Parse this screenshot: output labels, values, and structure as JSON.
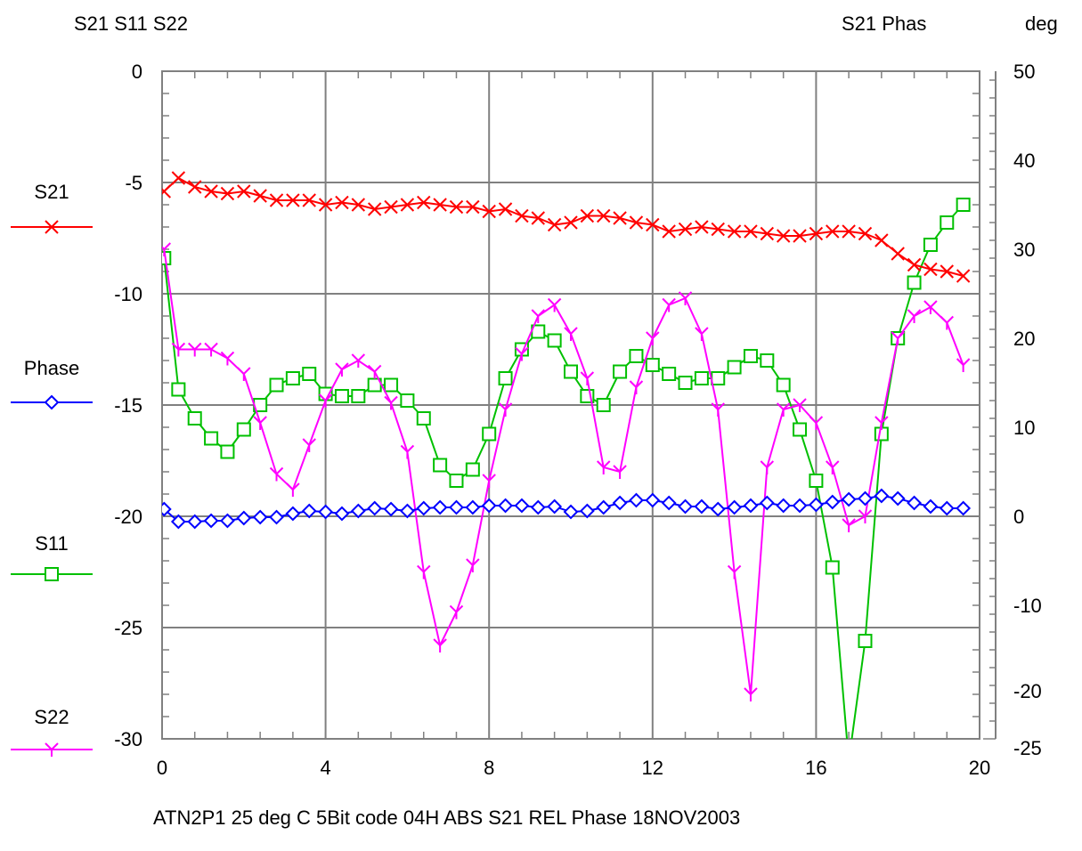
{
  "header": {
    "left_axis_title": "S21 S11 S22",
    "right_axis_title": "S21 Phas",
    "right_axis_unit": "deg"
  },
  "footer": {
    "caption": "ATN2P1 25 deg C  5Bit  code 04H  ABS S21  REL Phase  18NOV2003"
  },
  "chart_data": {
    "type": "line",
    "xlim": [
      0,
      20
    ],
    "x_ticks": [
      0,
      4,
      8,
      12,
      16,
      20
    ],
    "x_tick_labels": [
      "0",
      "4",
      "8",
      "12",
      "16",
      "20"
    ],
    "y_left_lim": [
      -30,
      0
    ],
    "y_left_ticks": [
      0,
      -5,
      -10,
      -15,
      -20,
      -25,
      -30
    ],
    "y_left_tick_labels": [
      "0",
      "-5",
      "-10",
      "-15",
      "-20",
      "-25",
      "-30"
    ],
    "y_right_lim": [
      -25,
      50
    ],
    "y_right_ticks": [
      50,
      40,
      30,
      20,
      10,
      0,
      -10,
      -20,
      -25
    ],
    "y_right_tick_labels": [
      "50",
      "40",
      "30",
      "20",
      "10",
      "0",
      "-10",
      "-20",
      "-25"
    ],
    "grid": true,
    "legend_position": "left",
    "series": [
      {
        "name": "S21",
        "axis": "left",
        "color": "#ff0000",
        "marker": "x",
        "x": [
          0.05,
          0.4,
          0.8,
          1.2,
          1.6,
          2.0,
          2.4,
          2.8,
          3.2,
          3.6,
          4.0,
          4.4,
          4.8,
          5.2,
          5.6,
          6.0,
          6.4,
          6.8,
          7.2,
          7.6,
          8.0,
          8.4,
          8.8,
          9.2,
          9.6,
          10.0,
          10.4,
          10.8,
          11.2,
          11.6,
          12.0,
          12.4,
          12.8,
          13.2,
          13.6,
          14.0,
          14.4,
          14.8,
          15.2,
          15.6,
          16.0,
          16.4,
          16.8,
          17.2,
          17.6,
          18.0,
          18.4,
          18.8,
          19.2,
          19.6
        ],
        "y": [
          -5.4,
          -4.8,
          -5.2,
          -5.4,
          -5.5,
          -5.4,
          -5.6,
          -5.8,
          -5.8,
          -5.8,
          -6.0,
          -5.9,
          -6.0,
          -6.2,
          -6.1,
          -6.0,
          -5.9,
          -6.0,
          -6.1,
          -6.1,
          -6.3,
          -6.2,
          -6.5,
          -6.6,
          -6.9,
          -6.8,
          -6.5,
          -6.5,
          -6.6,
          -6.8,
          -6.9,
          -7.2,
          -7.1,
          -7.0,
          -7.1,
          -7.2,
          -7.2,
          -7.3,
          -7.4,
          -7.4,
          -7.3,
          -7.2,
          -7.2,
          -7.3,
          -7.6,
          -8.2,
          -8.7,
          -8.9,
          -9.0,
          -9.2
        ]
      },
      {
        "name": "Phase",
        "axis": "right",
        "color": "#0000ff",
        "marker": "diamond",
        "x": [
          0.05,
          0.4,
          0.8,
          1.2,
          1.6,
          2.0,
          2.4,
          2.8,
          3.2,
          3.6,
          4.0,
          4.4,
          4.8,
          5.2,
          5.6,
          6.0,
          6.4,
          6.8,
          7.2,
          7.6,
          8.0,
          8.4,
          8.8,
          9.2,
          9.6,
          10.0,
          10.4,
          10.8,
          11.2,
          11.6,
          12.0,
          12.4,
          12.8,
          13.2,
          13.6,
          14.0,
          14.4,
          14.8,
          15.2,
          15.6,
          16.0,
          16.4,
          16.8,
          17.2,
          17.6,
          18.0,
          18.4,
          18.8,
          19.2,
          19.6
        ],
        "y": [
          0.8,
          -0.6,
          -0.6,
          -0.5,
          -0.5,
          -0.2,
          -0.1,
          -0.1,
          0.3,
          0.6,
          0.5,
          0.3,
          0.6,
          0.9,
          0.8,
          0.6,
          0.9,
          1.0,
          1.0,
          1.0,
          1.2,
          1.2,
          1.2,
          1.0,
          1.1,
          0.5,
          0.6,
          1.0,
          1.5,
          1.8,
          1.8,
          1.5,
          1.1,
          1.1,
          0.8,
          1.0,
          1.2,
          1.5,
          1.2,
          1.2,
          1.3,
          1.6,
          1.9,
          2.0,
          2.3,
          2.0,
          1.5,
          1.1,
          0.9,
          0.9
        ]
      },
      {
        "name": "S11",
        "axis": "left",
        "color": "#00c000",
        "marker": "square",
        "x": [
          0.05,
          0.4,
          0.8,
          1.2,
          1.6,
          2.0,
          2.4,
          2.8,
          3.2,
          3.6,
          4.0,
          4.4,
          4.8,
          5.2,
          5.6,
          6.0,
          6.4,
          6.8,
          7.2,
          7.6,
          8.0,
          8.4,
          8.8,
          9.2,
          9.6,
          10.0,
          10.4,
          10.8,
          11.2,
          11.6,
          12.0,
          12.4,
          12.8,
          13.2,
          13.6,
          14.0,
          14.4,
          14.8,
          15.2,
          15.6,
          16.0,
          16.4,
          16.8,
          17.2,
          17.6,
          18.0,
          18.4,
          18.8,
          19.2,
          19.6
        ],
        "y": [
          -8.4,
          -14.3,
          -15.6,
          -16.5,
          -17.1,
          -16.1,
          -15.0,
          -14.1,
          -13.8,
          -13.6,
          -14.5,
          -14.6,
          -14.6,
          -14.1,
          -14.1,
          -14.8,
          -15.6,
          -17.7,
          -18.4,
          -17.9,
          -16.3,
          -13.8,
          -12.5,
          -11.7,
          -12.1,
          -13.5,
          -14.6,
          -15.0,
          -13.5,
          -12.8,
          -13.2,
          -13.6,
          -14.0,
          -13.8,
          -13.8,
          -13.3,
          -12.8,
          -13.0,
          -14.1,
          -16.1,
          -18.4,
          -22.3,
          -31.0,
          -25.6,
          -16.3,
          -12.0,
          -9.5,
          -7.8,
          -6.8,
          -6.0
        ]
      },
      {
        "name": "S22",
        "axis": "left",
        "color": "#ff00ff",
        "marker": "tri",
        "x": [
          0.05,
          0.4,
          0.8,
          1.2,
          1.6,
          2.0,
          2.4,
          2.8,
          3.2,
          3.6,
          4.0,
          4.4,
          4.8,
          5.2,
          5.6,
          6.0,
          6.4,
          6.8,
          7.2,
          7.6,
          8.0,
          8.4,
          8.8,
          9.2,
          9.6,
          10.0,
          10.4,
          10.8,
          11.2,
          11.6,
          12.0,
          12.4,
          12.8,
          13.2,
          13.6,
          14.0,
          14.4,
          14.8,
          15.2,
          15.6,
          16.0,
          16.4,
          16.8,
          17.2,
          17.6,
          18.0,
          18.4,
          18.8,
          19.2,
          19.6
        ],
        "y": [
          -8.0,
          -12.5,
          -12.5,
          -12.5,
          -12.9,
          -13.6,
          -15.8,
          -18.1,
          -18.8,
          -16.8,
          -14.8,
          -13.4,
          -13.0,
          -13.5,
          -14.9,
          -17.1,
          -22.5,
          -25.8,
          -24.3,
          -22.2,
          -18.4,
          -15.2,
          -12.7,
          -11.0,
          -10.5,
          -11.8,
          -13.8,
          -17.8,
          -18.0,
          -14.2,
          -12.0,
          -10.5,
          -10.2,
          -11.8,
          -15.2,
          -22.5,
          -28.0,
          -17.8,
          -15.2,
          -15.0,
          -15.8,
          -17.8,
          -20.4,
          -20.0,
          -15.8,
          -12.0,
          -11.0,
          -10.6,
          -11.3,
          -13.2
        ]
      }
    ]
  }
}
